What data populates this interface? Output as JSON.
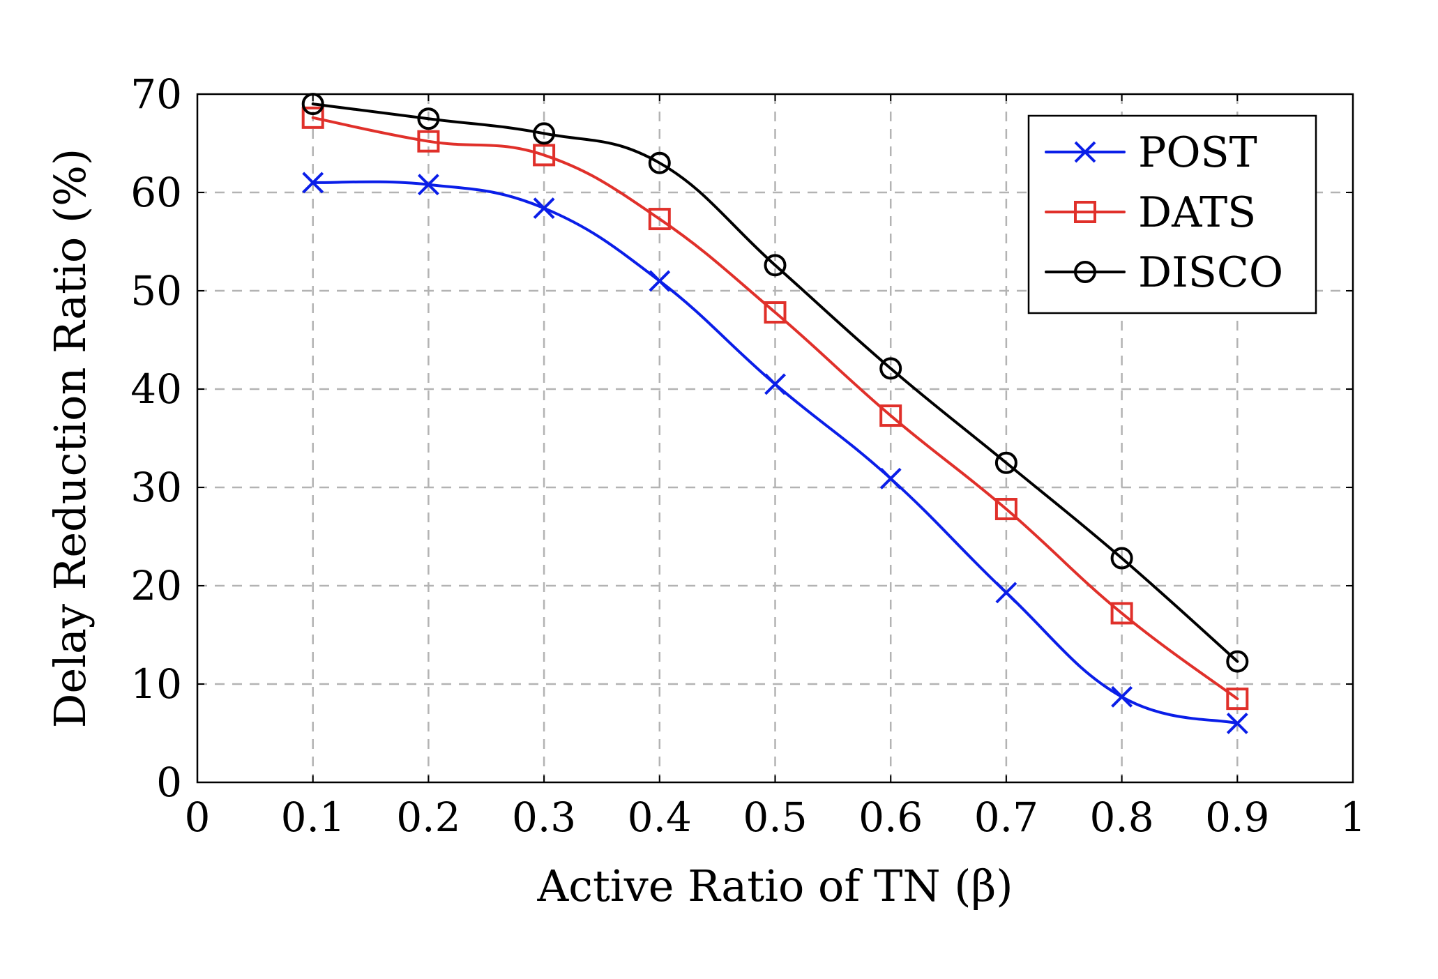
{
  "chart_data": {
    "type": "line",
    "xlabel": "Active Ratio of TN (β)",
    "ylabel": "Delay Reduction Ratio (%)",
    "xlim": [
      0,
      1
    ],
    "ylim": [
      0,
      70
    ],
    "grid": true,
    "legend_position": "top-right",
    "x_ticks": [
      "0",
      "0.1",
      "0.2",
      "0.3",
      "0.4",
      "0.5",
      "0.6",
      "0.7",
      "0.8",
      "0.9",
      "1"
    ],
    "y_ticks": [
      "0",
      "10",
      "20",
      "30",
      "40",
      "50",
      "60",
      "70"
    ],
    "x": [
      0.1,
      0.2,
      0.3,
      0.4,
      0.5,
      0.6,
      0.7,
      0.8,
      0.9
    ],
    "series": [
      {
        "name": "POST",
        "color": "#0a1ee8",
        "marker": "x",
        "values": [
          61.0,
          60.8,
          58.4,
          51.0,
          40.5,
          30.9,
          19.3,
          8.7,
          6.0
        ]
      },
      {
        "name": "DATS",
        "color": "#e0302a",
        "marker": "square",
        "values": [
          67.6,
          65.2,
          63.8,
          57.3,
          47.8,
          37.3,
          27.8,
          17.2,
          8.5
        ]
      },
      {
        "name": "DISCO",
        "color": "#000000",
        "marker": "circle",
        "values": [
          69.0,
          67.5,
          66.0,
          63.0,
          52.6,
          42.1,
          32.5,
          22.8,
          12.3
        ]
      }
    ]
  }
}
